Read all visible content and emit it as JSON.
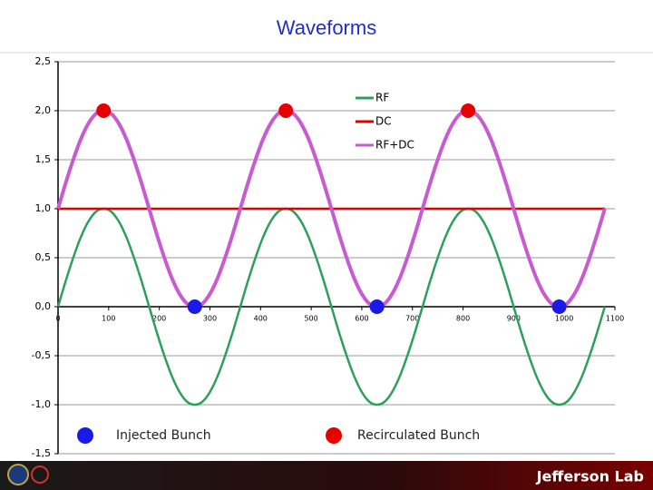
{
  "chart_data": {
    "type": "line",
    "title": "Waveforms",
    "x": [
      0,
      15,
      30,
      45,
      60,
      75,
      90,
      105,
      120,
      135,
      150,
      165,
      180,
      195,
      210,
      225,
      240,
      255,
      270,
      285,
      300,
      315,
      330,
      345,
      360,
      375,
      390,
      405,
      420,
      435,
      450,
      465,
      480,
      495,
      510,
      525,
      540,
      555,
      570,
      585,
      600,
      615,
      630,
      645,
      660,
      675,
      690,
      705,
      720,
      735,
      750,
      765,
      780,
      795,
      810,
      825,
      840,
      855,
      870,
      885,
      900,
      915,
      930,
      945,
      960,
      975,
      990,
      1005,
      1020,
      1035,
      1050,
      1065,
      1080
    ],
    "series": [
      {
        "name": "RF",
        "color": "#2ca05a",
        "values": [
          0,
          0.26,
          0.5,
          0.71,
          0.87,
          0.97,
          1,
          0.97,
          0.87,
          0.71,
          0.5,
          0.26,
          0,
          -0.26,
          -0.5,
          -0.71,
          -0.87,
          -0.97,
          -1,
          -0.97,
          -0.87,
          -0.71,
          -0.5,
          -0.26,
          0,
          0.26,
          0.5,
          0.71,
          0.87,
          0.97,
          1,
          0.97,
          0.87,
          0.71,
          0.5,
          0.26,
          0,
          -0.26,
          -0.5,
          -0.71,
          -0.87,
          -0.97,
          -1,
          -0.97,
          -0.87,
          -0.71,
          -0.5,
          -0.26,
          0,
          0.26,
          0.5,
          0.71,
          0.87,
          0.97,
          1,
          0.97,
          0.87,
          0.71,
          0.5,
          0.26,
          0,
          -0.26,
          -0.5,
          -0.71,
          -0.87,
          -0.97,
          -1,
          -0.97,
          -0.87,
          -0.71,
          -0.5,
          -0.26,
          0
        ]
      },
      {
        "name": "DC",
        "color": "#e00000",
        "x": [
          0,
          1080
        ],
        "values": [
          1,
          1
        ]
      },
      {
        "name": "RF+DC",
        "color": "#c85ad2",
        "values": [
          1,
          1.26,
          1.5,
          1.71,
          1.87,
          1.97,
          2,
          1.97,
          1.87,
          1.71,
          1.5,
          1.26,
          1,
          0.74,
          0.5,
          0.29,
          0.13,
          0.03,
          0,
          0.03,
          0.13,
          0.29,
          0.5,
          0.74,
          1,
          1.26,
          1.5,
          1.71,
          1.87,
          1.97,
          2,
          1.97,
          1.87,
          1.71,
          1.5,
          1.26,
          1,
          0.74,
          0.5,
          0.29,
          0.13,
          0.03,
          0,
          0.03,
          0.13,
          0.29,
          0.5,
          0.74,
          1,
          1.26,
          1.5,
          1.71,
          1.87,
          1.97,
          2,
          1.97,
          1.87,
          1.71,
          1.5,
          1.26,
          1,
          0.74,
          0.5,
          0.29,
          0.13,
          0.03,
          0,
          0.03,
          0.13,
          0.29,
          0.5,
          0.74,
          1
        ]
      }
    ],
    "markers": [
      {
        "name": "Injected Bunch",
        "color": "#1a1ae6",
        "x": [
          270,
          630,
          990
        ],
        "values": [
          0,
          0,
          0
        ]
      },
      {
        "name": "Recirculated Bunch",
        "color": "#e60000",
        "x": [
          90,
          450,
          810
        ],
        "values": [
          2,
          2,
          2
        ]
      }
    ],
    "xlim": [
      0,
      1100
    ],
    "ylim": [
      -1.5,
      2.5
    ],
    "xticks": [
      0,
      100,
      200,
      300,
      400,
      500,
      600,
      700,
      800,
      900,
      1000,
      1100
    ],
    "yticks": [
      {
        "value": -1.5,
        "label": "-1,5"
      },
      {
        "value": -1,
        "label": "-1,0"
      },
      {
        "value": -0.5,
        "label": "-0,5"
      },
      {
        "value": 0,
        "label": "0,0"
      },
      {
        "value": 0.5,
        "label": "0,5"
      },
      {
        "value": 1,
        "label": "1,0"
      },
      {
        "value": 1.5,
        "label": "1,5"
      },
      {
        "value": 2,
        "label": "2,0"
      },
      {
        "value": 2.5,
        "label": "2,5"
      }
    ],
    "grid": true,
    "legend": "upper right"
  },
  "footer": {
    "logo": "Jefferson Lab"
  }
}
